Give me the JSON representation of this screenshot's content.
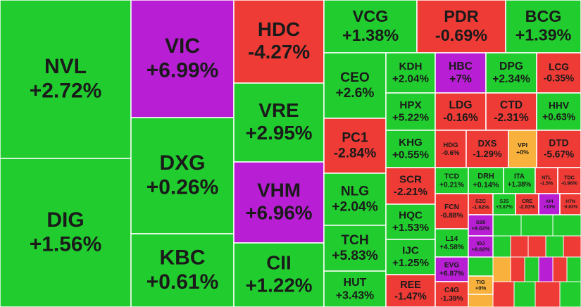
{
  "chart_data": {
    "type": "treemap",
    "categories": [
      "NVL",
      "DIG",
      "VIC",
      "DXG",
      "KBC",
      "HDC",
      "VRE",
      "VHM",
      "CII",
      "VCG",
      "PDR",
      "BCG",
      "CEO",
      "PC1",
      "NLG",
      "TCH",
      "HUT",
      "KDH",
      "HPX",
      "KHG",
      "SCR",
      "HQC",
      "IJC",
      "REE",
      "HBC",
      "DPG",
      "LCG",
      "LDG",
      "CTD",
      "HHV",
      "HDG",
      "DXS",
      "VPI",
      "DTD",
      "TCD",
      "DRH",
      "ITA",
      "NTL",
      "TDC",
      "FCN",
      "L14",
      "EVG",
      "C4G",
      "SZC",
      "SJS",
      "CRE",
      "API",
      "HTN",
      "S99",
      "IDJ",
      "TIG"
    ],
    "values": [
      2.72,
      1.56,
      6.99,
      0.26,
      0.61,
      -4.27,
      2.95,
      6.96,
      1.22,
      1.38,
      -0.69,
      1.39,
      2.6,
      -2.84,
      2.04,
      5.83,
      3.43,
      2.04,
      5.22,
      0.55,
      -2.21,
      1.53,
      1.25,
      -1.47,
      7,
      2.34,
      -0.35,
      -0.16,
      -2.31,
      0.63,
      -0.6,
      -1.29,
      0,
      -5.67,
      0.21,
      0.14,
      1.38,
      -1.5,
      -0.96,
      -0.88,
      4.58,
      6.87,
      -1.39,
      -1.62,
      3.67,
      -2.83,
      10,
      -0.83,
      9.62,
      8.62,
      0
    ],
    "value_labels": [
      "+2.72%",
      "+1.56%",
      "+6.99%",
      "+0.26%",
      "+0.61%",
      "-4.27%",
      "+2.95%",
      "+6.96%",
      "+1.22%",
      "+1.38%",
      "-0.69%",
      "+1.39%",
      "+2.6%",
      "-2.84%",
      "+2.04%",
      "+5.83%",
      "+3.43%",
      "+2.04%",
      "+5.22%",
      "+0.55%",
      "-2.21%",
      "+1.53%",
      "+1.25%",
      "-1.47%",
      "+7%",
      "+2.34%",
      "-0.35%",
      "-0.16%",
      "-2.31%",
      "+0.63%",
      "-0.6%",
      "-1.29%",
      "+0%",
      "-5.67%",
      "+0.21%",
      "+0.14%",
      "+1.38%",
      "-1.5%",
      "-0.96%",
      "-0.88%",
      "+4.58%",
      "+6.87%",
      "-1.39%",
      "-1.62%",
      "+3.67%",
      "-2.83%",
      "+10%",
      "-0.83%",
      "+9.62%",
      "+8.62%",
      "+0%"
    ],
    "colors": {
      "up": "#21cc2e",
      "down": "#ef3b36",
      "ceiling": "#b81fd4",
      "floor_ref": "#f7b13c"
    }
  }
}
